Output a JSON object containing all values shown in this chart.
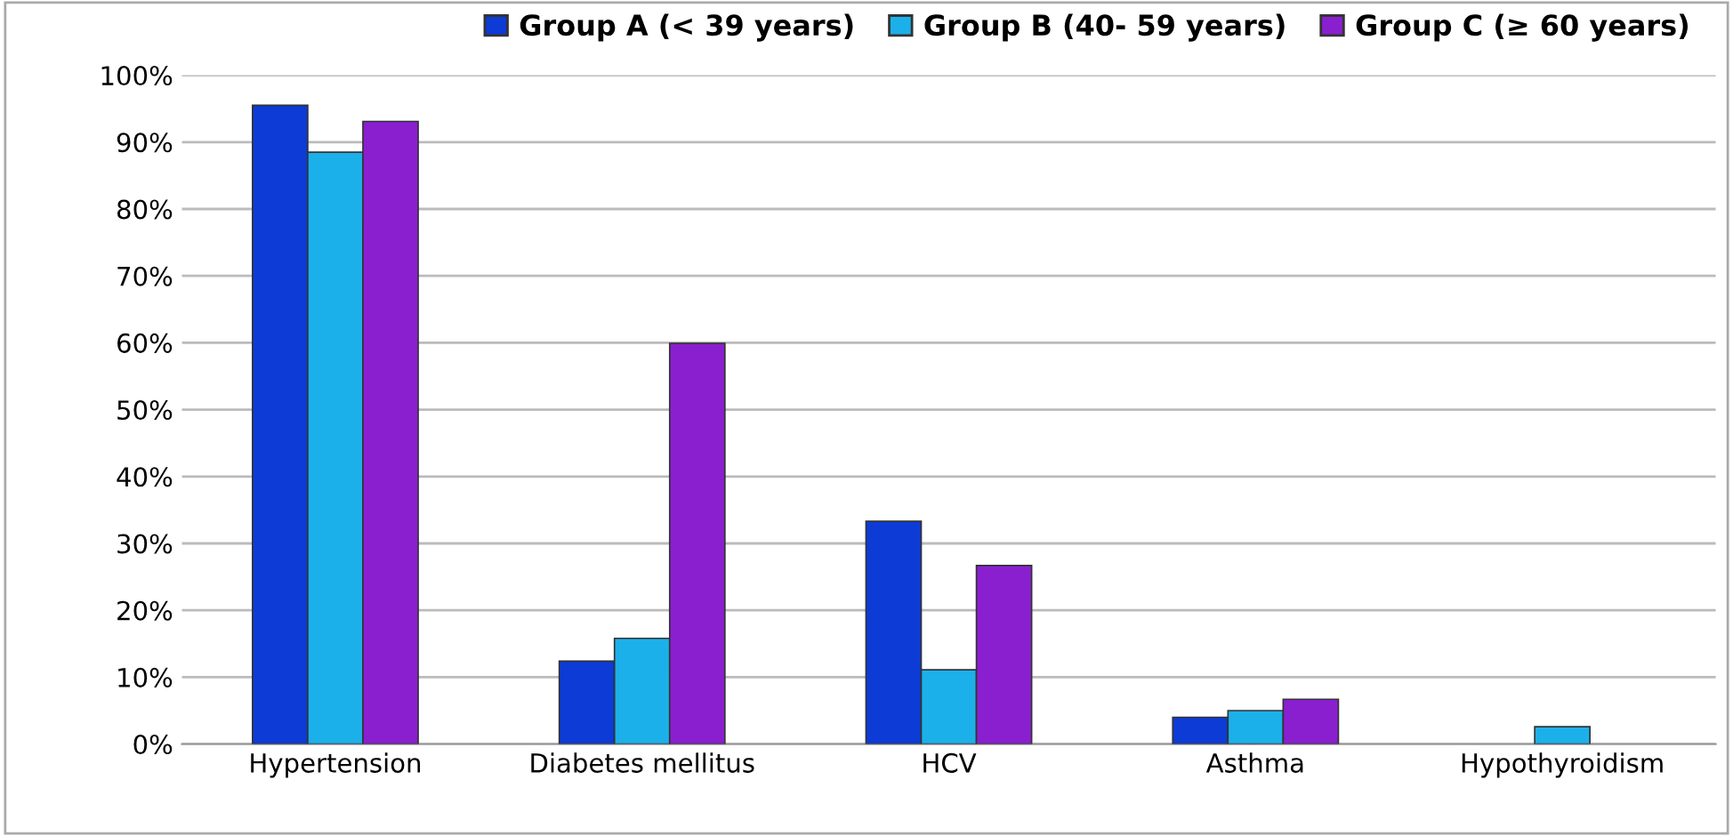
{
  "chart_data": {
    "type": "bar",
    "categories": [
      "Hypertension",
      "Diabetes mellitus",
      "HCV",
      "Asthma",
      "Hypothyroidism"
    ],
    "series": [
      {
        "name": "Group A (< 39 years)",
        "color": "#0c3bd6",
        "values": [
          95.5,
          12.4,
          33.3,
          4.0,
          null
        ]
      },
      {
        "name": "Group B (40- 59 years)",
        "color": "#1cb0ea",
        "values": [
          88.5,
          15.8,
          11.1,
          5.0,
          2.6
        ]
      },
      {
        "name": "Group C (≥ 60 years)",
        "color": "#8a1fd0",
        "values": [
          93.1,
          59.9,
          26.7,
          6.7,
          null
        ]
      }
    ],
    "ylim": [
      0,
      100
    ],
    "yticks": [
      {
        "value": 0,
        "label": "0%"
      },
      {
        "value": 10,
        "label": "10%"
      },
      {
        "value": 20,
        "label": "20%"
      },
      {
        "value": 30,
        "label": "30%"
      },
      {
        "value": 40,
        "label": "40%"
      },
      {
        "value": 50,
        "label": "50%"
      },
      {
        "value": 60,
        "label": "60%"
      },
      {
        "value": 70,
        "label": "70%"
      },
      {
        "value": 80,
        "label": "80%"
      },
      {
        "value": 90,
        "label": "90%"
      },
      {
        "value": 100,
        "label": "100%"
      }
    ],
    "grid": "y",
    "legend": "top right"
  }
}
